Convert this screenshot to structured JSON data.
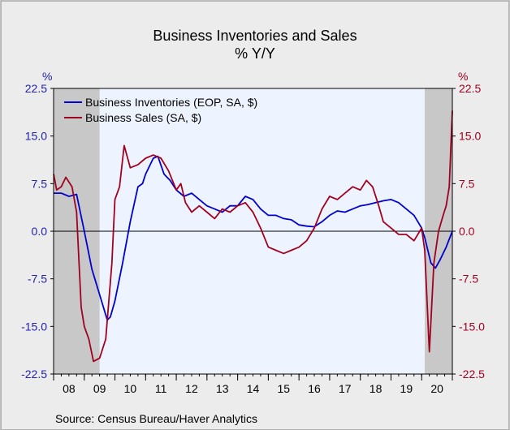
{
  "header": {
    "title": "Business Inventories and Sales",
    "subtitle": "% Y/Y",
    "left_unit": "%",
    "right_unit": "%"
  },
  "footer": {
    "source": "Source:  Census Bureau/Haver Analytics"
  },
  "colors": {
    "inventories": "#0000cc",
    "sales": "#a00020",
    "left_axis": "#2222aa",
    "right_axis": "#a00020",
    "plot_bg": "#eef4ff",
    "recession": "#c8c8c8"
  },
  "chart_data": {
    "type": "line",
    "title": "Business Inventories and Sales",
    "subtitle": "% Y/Y",
    "ylabel_left": "%",
    "ylabel_right": "%",
    "ylim": [
      -22.5,
      22.5
    ],
    "y_ticks": [
      22.5,
      15.0,
      7.5,
      0.0,
      -7.5,
      -15.0,
      -22.5
    ],
    "y_tick_labels": [
      "22.5",
      "15.0",
      "7.5",
      "0.0",
      "-7.5",
      "-15.0",
      "-22.5"
    ],
    "xlim": [
      2008.0,
      2021.0
    ],
    "x_tick_labels": [
      "08",
      "09",
      "10",
      "11",
      "12",
      "13",
      "14",
      "15",
      "16",
      "17",
      "18",
      "19",
      "20"
    ],
    "recessions": [
      [
        2008.0,
        2009.5
      ],
      [
        2020.1,
        2021.0
      ]
    ],
    "legend": "top-left",
    "series": [
      {
        "name": "Business Inventories (EOP, SA, $)",
        "color": "#0000cc",
        "points": [
          [
            2008.0,
            6.0
          ],
          [
            2008.25,
            6.0
          ],
          [
            2008.5,
            5.5
          ],
          [
            2008.75,
            5.8
          ],
          [
            2009.0,
            0.0
          ],
          [
            2009.25,
            -6.0
          ],
          [
            2009.5,
            -10.0
          ],
          [
            2009.75,
            -14.0
          ],
          [
            2009.85,
            -13.5
          ],
          [
            2010.0,
            -11.0
          ],
          [
            2010.25,
            -5.0
          ],
          [
            2010.5,
            1.5
          ],
          [
            2010.75,
            7.0
          ],
          [
            2010.9,
            7.5
          ],
          [
            2011.0,
            9.0
          ],
          [
            2011.25,
            11.5
          ],
          [
            2011.4,
            11.8
          ],
          [
            2011.6,
            9.0
          ],
          [
            2011.8,
            8.0
          ],
          [
            2012.0,
            6.5
          ],
          [
            2012.25,
            5.5
          ],
          [
            2012.5,
            6.0
          ],
          [
            2012.75,
            5.0
          ],
          [
            2013.0,
            4.0
          ],
          [
            2013.25,
            3.5
          ],
          [
            2013.5,
            3.0
          ],
          [
            2013.75,
            4.0
          ],
          [
            2014.0,
            4.0
          ],
          [
            2014.25,
            5.5
          ],
          [
            2014.5,
            5.0
          ],
          [
            2014.75,
            3.5
          ],
          [
            2015.0,
            2.5
          ],
          [
            2015.25,
            2.5
          ],
          [
            2015.5,
            2.0
          ],
          [
            2015.75,
            1.8
          ],
          [
            2016.0,
            1.0
          ],
          [
            2016.25,
            0.8
          ],
          [
            2016.5,
            0.7
          ],
          [
            2016.75,
            1.5
          ],
          [
            2017.0,
            2.5
          ],
          [
            2017.25,
            3.2
          ],
          [
            2017.5,
            3.0
          ],
          [
            2017.75,
            3.5
          ],
          [
            2018.0,
            4.0
          ],
          [
            2018.25,
            4.2
          ],
          [
            2018.5,
            4.5
          ],
          [
            2018.75,
            4.8
          ],
          [
            2019.0,
            5.0
          ],
          [
            2019.25,
            4.5
          ],
          [
            2019.5,
            3.5
          ],
          [
            2019.75,
            2.5
          ],
          [
            2020.0,
            0.5
          ],
          [
            2020.1,
            -1.0
          ],
          [
            2020.3,
            -5.0
          ],
          [
            2020.45,
            -5.8
          ],
          [
            2020.6,
            -4.5
          ],
          [
            2020.8,
            -2.5
          ],
          [
            2021.0,
            0.0
          ]
        ]
      },
      {
        "name": "Business Sales (SA, $)",
        "color": "#a00020",
        "points": [
          [
            2008.0,
            9.0
          ],
          [
            2008.1,
            6.5
          ],
          [
            2008.25,
            7.0
          ],
          [
            2008.4,
            8.5
          ],
          [
            2008.6,
            7.0
          ],
          [
            2008.75,
            3.0
          ],
          [
            2008.9,
            -12.0
          ],
          [
            2009.0,
            -15.0
          ],
          [
            2009.15,
            -17.0
          ],
          [
            2009.3,
            -20.5
          ],
          [
            2009.5,
            -20.0
          ],
          [
            2009.7,
            -17.0
          ],
          [
            2009.9,
            -5.0
          ],
          [
            2010.0,
            5.0
          ],
          [
            2010.15,
            7.0
          ],
          [
            2010.3,
            13.5
          ],
          [
            2010.5,
            10.0
          ],
          [
            2010.75,
            10.5
          ],
          [
            2011.0,
            11.5
          ],
          [
            2011.25,
            12.0
          ],
          [
            2011.5,
            11.5
          ],
          [
            2011.75,
            9.5
          ],
          [
            2012.0,
            6.5
          ],
          [
            2012.15,
            7.5
          ],
          [
            2012.3,
            4.5
          ],
          [
            2012.5,
            3.0
          ],
          [
            2012.75,
            4.0
          ],
          [
            2013.0,
            3.0
          ],
          [
            2013.25,
            2.0
          ],
          [
            2013.5,
            3.5
          ],
          [
            2013.75,
            3.0
          ],
          [
            2014.0,
            4.0
          ],
          [
            2014.25,
            4.5
          ],
          [
            2014.5,
            3.0
          ],
          [
            2014.75,
            0.5
          ],
          [
            2015.0,
            -2.5
          ],
          [
            2015.25,
            -3.0
          ],
          [
            2015.5,
            -3.5
          ],
          [
            2015.75,
            -3.0
          ],
          [
            2016.0,
            -2.5
          ],
          [
            2016.25,
            -1.5
          ],
          [
            2016.5,
            0.5
          ],
          [
            2016.75,
            3.5
          ],
          [
            2017.0,
            5.5
          ],
          [
            2017.25,
            5.0
          ],
          [
            2017.5,
            6.0
          ],
          [
            2017.75,
            7.0
          ],
          [
            2018.0,
            6.5
          ],
          [
            2018.2,
            8.0
          ],
          [
            2018.4,
            7.0
          ],
          [
            2018.6,
            4.0
          ],
          [
            2018.75,
            1.5
          ],
          [
            2019.0,
            0.5
          ],
          [
            2019.25,
            -0.5
          ],
          [
            2019.5,
            -0.5
          ],
          [
            2019.75,
            -1.5
          ],
          [
            2020.0,
            0.5
          ],
          [
            2020.1,
            -3.0
          ],
          [
            2020.25,
            -19.0
          ],
          [
            2020.4,
            -5.0
          ],
          [
            2020.55,
            0.0
          ],
          [
            2020.7,
            2.5
          ],
          [
            2020.8,
            4.0
          ],
          [
            2020.9,
            7.0
          ],
          [
            2021.0,
            19.0
          ]
        ]
      }
    ]
  }
}
